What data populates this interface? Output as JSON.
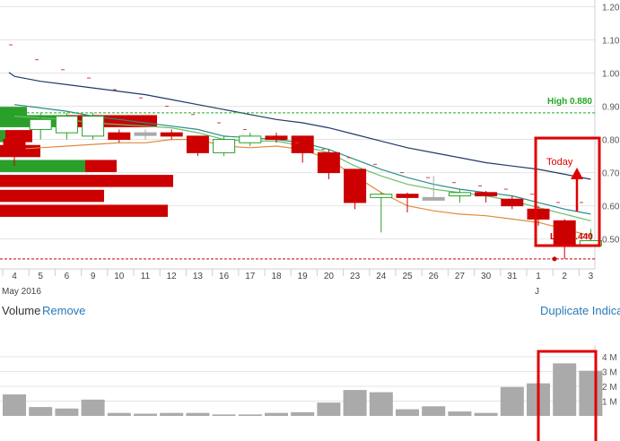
{
  "price_panel": {
    "month_label": "May 2016",
    "high_label": "High 0.880",
    "low_label": "Low 0.440",
    "today_label": "Today",
    "partial_month_label": "J"
  },
  "toolbar": {
    "volume_label": "Volume",
    "remove_label": "Remove",
    "duplicate_label": "Duplicate Indica"
  },
  "colors": {
    "up_candle": "#2aa02a",
    "down_candle": "#cc0000",
    "neutral_candle": "#aaaaaa",
    "ma_long": "#1f3a66",
    "ma_mid": "#2a8c8c",
    "ma_short_green": "#6abf6a",
    "ma_short_orange": "#e08a3c",
    "annotation_red": "#e00000",
    "high_line": "#22aa22",
    "low_line": "#cc0000",
    "volume_bar": "#aaaaaa"
  },
  "chart_data": [
    {
      "type": "candlestick",
      "x": [
        "4",
        "5",
        "6",
        "9",
        "10",
        "11",
        "12",
        "13",
        "16",
        "17",
        "18",
        "19",
        "20",
        "23",
        "24",
        "25",
        "26",
        "27",
        "30",
        "31",
        "1",
        "2",
        "3"
      ],
      "open": [
        0.8,
        0.83,
        0.82,
        0.81,
        0.82,
        0.82,
        0.82,
        0.81,
        0.76,
        0.79,
        0.81,
        0.81,
        0.76,
        0.71,
        0.625,
        0.635,
        0.625,
        0.63,
        0.64,
        0.62,
        0.59,
        0.555,
        0.48
      ],
      "close": [
        0.76,
        0.86,
        0.87,
        0.87,
        0.8,
        0.82,
        0.81,
        0.76,
        0.8,
        0.81,
        0.8,
        0.76,
        0.7,
        0.61,
        0.635,
        0.625,
        0.625,
        0.64,
        0.63,
        0.6,
        0.56,
        0.48,
        0.495
      ],
      "high": [
        0.81,
        0.88,
        0.88,
        0.88,
        0.83,
        0.83,
        0.83,
        0.81,
        0.81,
        0.82,
        0.82,
        0.81,
        0.77,
        0.71,
        0.64,
        0.64,
        0.69,
        0.65,
        0.645,
        0.63,
        0.6,
        0.56,
        0.53
      ],
      "low": [
        0.72,
        0.8,
        0.8,
        0.8,
        0.79,
        0.8,
        0.8,
        0.75,
        0.75,
        0.78,
        0.79,
        0.73,
        0.68,
        0.59,
        0.52,
        0.58,
        0.62,
        0.61,
        0.61,
        0.59,
        0.54,
        0.44,
        0.48
      ],
      "yaxis_ticks": [
        "1.20",
        "1.10",
        "1.00",
        "0.90",
        "0.80",
        "0.70",
        "0.60",
        "0.50"
      ],
      "ylim": [
        0.41,
        1.22
      ],
      "xlabel": "May 2016",
      "high_line": 0.88,
      "low_line": 0.44,
      "moving_averages": [
        {
          "key": "ma_long",
          "values": [
            0.99,
            0.975,
            0.965,
            0.955,
            0.945,
            0.935,
            0.92,
            0.905,
            0.89,
            0.875,
            0.86,
            0.85,
            0.835,
            0.815,
            0.795,
            0.775,
            0.76,
            0.745,
            0.73,
            0.72,
            0.71,
            0.695,
            0.68
          ]
        },
        {
          "key": "ma_mid",
          "values": [
            0.905,
            0.895,
            0.885,
            0.87,
            0.86,
            0.85,
            0.84,
            0.83,
            0.81,
            0.805,
            0.8,
            0.79,
            0.77,
            0.74,
            0.71,
            0.685,
            0.665,
            0.65,
            0.64,
            0.63,
            0.61,
            0.59,
            0.575
          ]
        },
        {
          "key": "ma_short_green",
          "values": [
            0.87,
            0.865,
            0.86,
            0.85,
            0.845,
            0.84,
            0.835,
            0.82,
            0.8,
            0.795,
            0.795,
            0.78,
            0.76,
            0.72,
            0.69,
            0.665,
            0.65,
            0.64,
            0.63,
            0.615,
            0.595,
            0.575,
            0.555
          ]
        },
        {
          "key": "ma_short_orange",
          "values": [
            0.77,
            0.775,
            0.78,
            0.785,
            0.79,
            0.79,
            0.8,
            0.8,
            0.78,
            0.775,
            0.78,
            0.77,
            0.74,
            0.69,
            0.64,
            0.6,
            0.585,
            0.575,
            0.57,
            0.56,
            0.55,
            0.53,
            0.51
          ]
        }
      ],
      "volume_at_price": [
        {
          "price": 0.88,
          "up": 30,
          "down": 0
        },
        {
          "price": 0.855,
          "up": 75,
          "down": 100
        },
        {
          "price": 0.81,
          "up": 6,
          "down": 30
        },
        {
          "price": 0.765,
          "up": 0,
          "down": 45
        },
        {
          "price": 0.72,
          "up": 95,
          "down": 35
        },
        {
          "price": 0.675,
          "up": 0,
          "down": 193
        },
        {
          "price": 0.63,
          "up": 0,
          "down": 116
        },
        {
          "price": 0.585,
          "up": 0,
          "down": 187
        }
      ]
    },
    {
      "type": "bar",
      "title": "Volume",
      "categories": [
        "4",
        "5",
        "6",
        "9",
        "10",
        "11",
        "12",
        "13",
        "16",
        "17",
        "18",
        "19",
        "20",
        "23",
        "24",
        "25",
        "26",
        "27",
        "30",
        "31",
        "1",
        "2",
        "3"
      ],
      "values": [
        1.45,
        0.6,
        0.5,
        1.1,
        0.2,
        0.15,
        0.2,
        0.2,
        0.1,
        0.1,
        0.2,
        0.25,
        0.9,
        1.75,
        1.6,
        0.45,
        0.65,
        0.3,
        0.2,
        1.95,
        2.2,
        3.55,
        3.05
      ],
      "yaxis_ticks": [
        "4 M",
        "3 M",
        "2 M",
        "1 M"
      ],
      "ylim": [
        0,
        4.3
      ]
    }
  ]
}
